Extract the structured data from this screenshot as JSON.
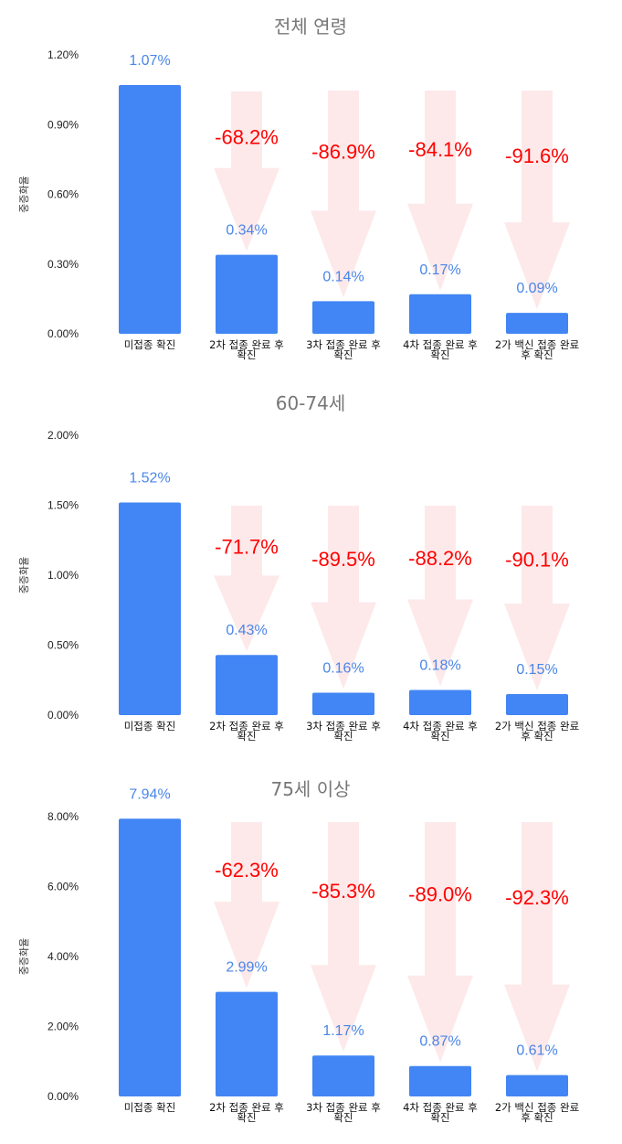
{
  "colors": {
    "bar": "#4285f4",
    "value_label": "#4a86e8",
    "change_label": "#ff0000",
    "arrow": "#fde9ea",
    "title": "#777777"
  },
  "chart_data": [
    {
      "type": "bar",
      "title": "전체 연령",
      "ylabel": "중증화율",
      "ylim": [
        0,
        1.2
      ],
      "yticks": [
        "0.00%",
        "0.30%",
        "0.60%",
        "0.90%",
        "1.20%"
      ],
      "categories": [
        [
          "미접종 확진"
        ],
        [
          "2차 접종 완료 후",
          "확진"
        ],
        [
          "3차 접종 완료 후",
          "확진"
        ],
        [
          "4차 접종 완료 후",
          "확진"
        ],
        [
          "2가 백신 접종 완료",
          "후 확진"
        ]
      ],
      "values": [
        1.07,
        0.34,
        0.14,
        0.17,
        0.09
      ],
      "value_labels": [
        "1.07%",
        "0.34%",
        "0.14%",
        "0.17%",
        "0.09%"
      ],
      "changes": [
        "",
        "-68.2%",
        "-86.9%",
        "-84.1%",
        "-91.6%"
      ]
    },
    {
      "type": "bar",
      "title": "60-74세",
      "ylabel": "중증화율",
      "ylim": [
        0,
        2.0
      ],
      "yticks": [
        "0.00%",
        "0.50%",
        "1.00%",
        "1.50%",
        "2.00%"
      ],
      "categories": [
        [
          "미접종 확진"
        ],
        [
          "2차 접종 완료 후",
          "확진"
        ],
        [
          "3차 접종 완료 후",
          "확진"
        ],
        [
          "4차 접종 완료 후",
          "확진"
        ],
        [
          "2가 백신 접종 완료",
          "후 확진"
        ]
      ],
      "values": [
        1.52,
        0.43,
        0.16,
        0.18,
        0.15
      ],
      "value_labels": [
        "1.52%",
        "0.43%",
        "0.16%",
        "0.18%",
        "0.15%"
      ],
      "changes": [
        "",
        "-71.7%",
        "-89.5%",
        "-88.2%",
        "-90.1%"
      ]
    },
    {
      "type": "bar",
      "title": "75세 이상",
      "ylabel": "중증화율",
      "ylim": [
        0,
        8.0
      ],
      "yticks": [
        "0.00%",
        "2.00%",
        "4.00%",
        "6.00%",
        "8.00%"
      ],
      "categories": [
        [
          "미접종 확진"
        ],
        [
          "2차 접종 완료 후",
          "확진"
        ],
        [
          "3차 접종 완료 후",
          "확진"
        ],
        [
          "4차 접종 완료 후",
          "확진"
        ],
        [
          "2가 백신 접종 완료",
          "후 확진"
        ]
      ],
      "values": [
        7.94,
        2.99,
        1.17,
        0.87,
        0.61
      ],
      "value_labels": [
        "7.94%",
        "2.99%",
        "1.17%",
        "0.87%",
        "0.61%"
      ],
      "changes": [
        "",
        "-62.3%",
        "-85.3%",
        "-89.0%",
        "-92.3%"
      ]
    }
  ]
}
